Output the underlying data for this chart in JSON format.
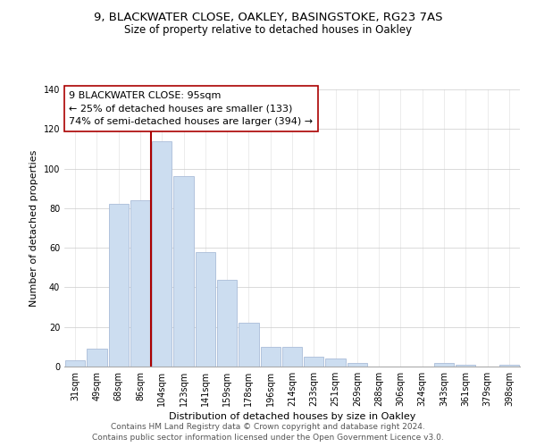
{
  "title_line1": "9, BLACKWATER CLOSE, OAKLEY, BASINGSTOKE, RG23 7AS",
  "title_line2": "Size of property relative to detached houses in Oakley",
  "xlabel": "Distribution of detached houses by size in Oakley",
  "ylabel": "Number of detached properties",
  "bar_labels": [
    "31sqm",
    "49sqm",
    "68sqm",
    "86sqm",
    "104sqm",
    "123sqm",
    "141sqm",
    "159sqm",
    "178sqm",
    "196sqm",
    "214sqm",
    "233sqm",
    "251sqm",
    "269sqm",
    "288sqm",
    "306sqm",
    "324sqm",
    "343sqm",
    "361sqm",
    "379sqm",
    "398sqm"
  ],
  "bar_values": [
    3,
    9,
    82,
    84,
    114,
    96,
    58,
    44,
    22,
    10,
    10,
    5,
    4,
    2,
    0,
    0,
    0,
    2,
    1,
    0,
    1
  ],
  "bar_color": "#ccddf0",
  "bar_edge_color": "#aabdd8",
  "highlight_line_color": "#aa0000",
  "annotation_line1": "9 BLACKWATER CLOSE: 95sqm",
  "annotation_line2": "← 25% of detached houses are smaller (133)",
  "annotation_line3": "74% of semi-detached houses are larger (394) →",
  "ylim": [
    0,
    140
  ],
  "yticks": [
    0,
    20,
    40,
    60,
    80,
    100,
    120,
    140
  ],
  "footer_line1": "Contains HM Land Registry data © Crown copyright and database right 2024.",
  "footer_line2": "Contains public sector information licensed under the Open Government Licence v3.0.",
  "title_fontsize": 9.5,
  "subtitle_fontsize": 8.5,
  "axis_label_fontsize": 8,
  "tick_fontsize": 7,
  "annotation_fontsize": 8,
  "footer_fontsize": 6.5,
  "highlight_line_xindex": 3.5
}
